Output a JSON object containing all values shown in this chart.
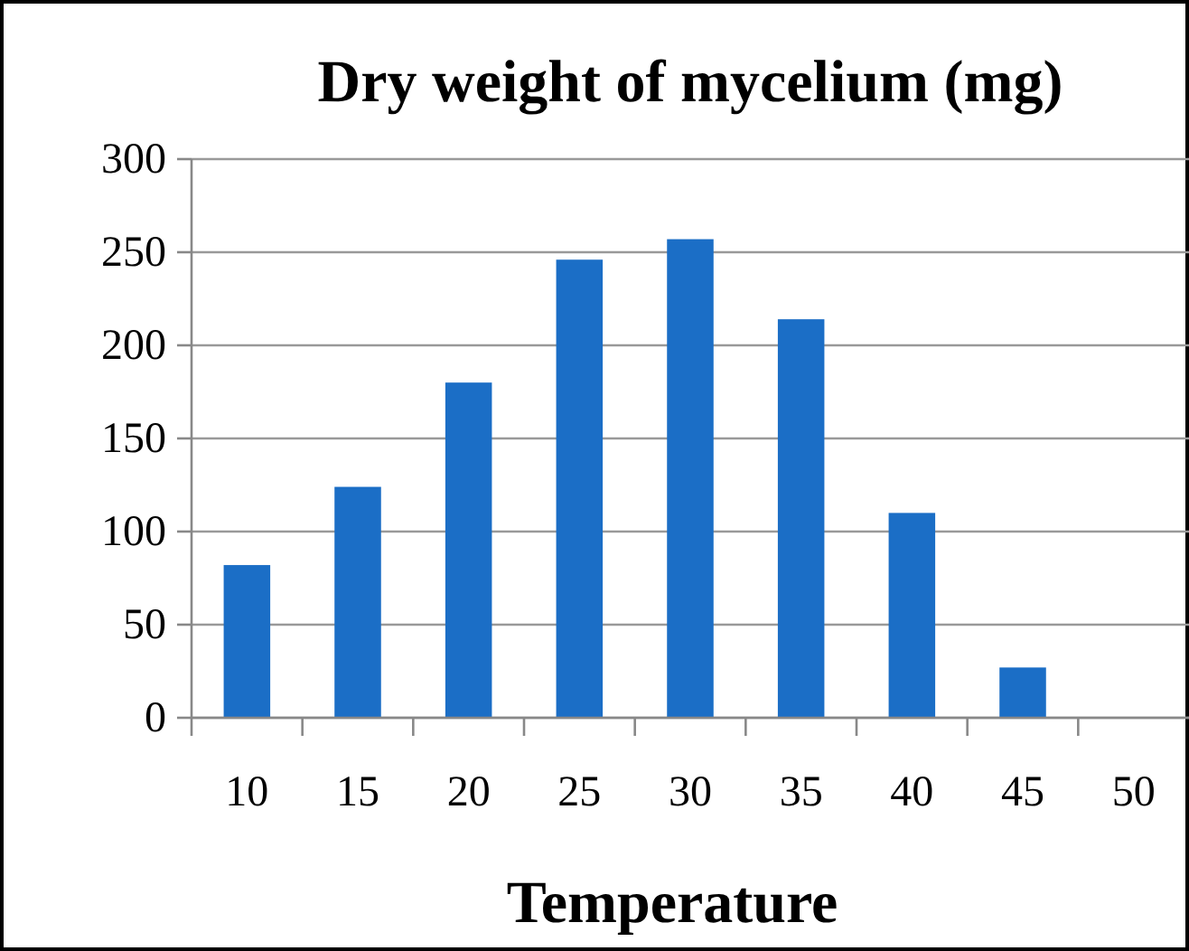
{
  "chart_data": {
    "type": "bar",
    "title": "Dry weight of mycelium (mg)",
    "xlabel": "Temperature",
    "categories": [
      "10",
      "15",
      "20",
      "25",
      "30",
      "35",
      "40",
      "45",
      "50"
    ],
    "values": [
      82,
      124,
      180,
      246,
      257,
      214,
      110,
      27,
      null
    ],
    "color": "#1b6ec6",
    "ylim": [
      0,
      300
    ],
    "yticks": [
      0,
      50,
      100,
      150,
      200,
      250,
      300
    ],
    "grid": "y"
  }
}
